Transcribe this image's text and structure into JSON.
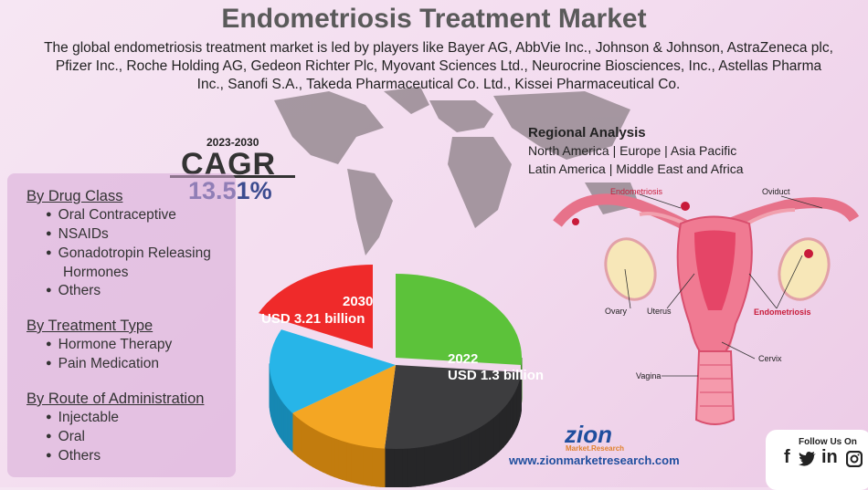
{
  "header": {
    "title": "Endometriosis Treatment Market",
    "description": "The global endometriosis treatment market is led by players like Bayer AG, AbbVie Inc., Johnson & Johnson, AstraZeneca plc, Pfizer Inc., Roche Holding AG, Gedeon Richter Plc, Myovant Sciences Ltd., Neurocrine Biosciences, Inc., Astellas Pharma Inc., Sanofi S.A., Takeda Pharmaceutical Co. Ltd., Kissei Pharmaceutical Co."
  },
  "cagr": {
    "period": "2023-2030",
    "label": "CAGR",
    "value": "13.51%"
  },
  "regional": {
    "title": "Regional Analysis",
    "lines": [
      "North America | Europe | Asia Pacific",
      "Latin America | Middle East and Africa"
    ]
  },
  "segments": [
    {
      "title": "By Drug Class",
      "items": [
        "Oral Contraceptive",
        "NSAIDs",
        "Gonadotropin Releasing Hormones",
        "Others"
      ]
    },
    {
      "title": "By Treatment Type",
      "items": [
        "Hormone Therapy",
        "Pain Medication"
      ]
    },
    {
      "title": "By Route of Administration",
      "items": [
        "Injectable",
        "Oral",
        "Others"
      ]
    }
  ],
  "market": {
    "year_2030": "2030",
    "size_2030": "USD 3.21 billion",
    "year_2022": "2022",
    "size_2022": "USD 1.3 billion"
  },
  "anatomy": {
    "endometriosis_top": "Endometriosis",
    "oviduct": "Oviduct",
    "ovary": "Ovary",
    "uterus": "Uterus",
    "endometriosis_right": "Endometriosis",
    "cervix": "Cervix",
    "vagina": "Vagina"
  },
  "footer": {
    "logo": "zion",
    "logo_sub": "Market.Research",
    "website": "www.zionmarketresearch.com",
    "follow": "Follow Us On",
    "social": [
      "f",
      "in"
    ]
  }
}
